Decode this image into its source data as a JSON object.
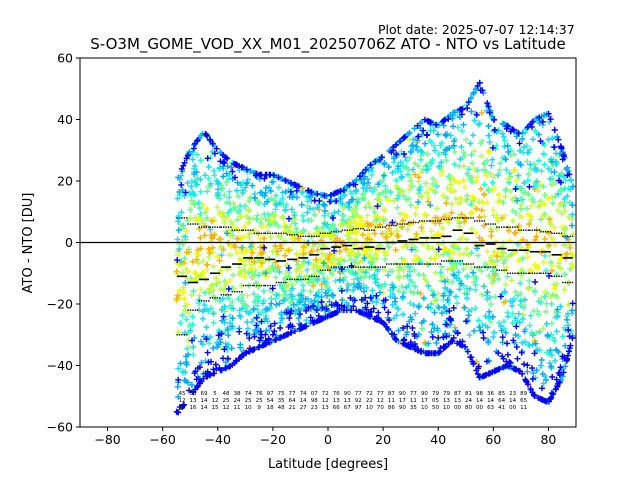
{
  "plot_date": "Plot date: 2025-07-07 12:14:37",
  "colors": {
    "background": "#ffffff",
    "axis": "#000000",
    "scatter_palette": [
      "#0000ff",
      "#00a8ff",
      "#1ad7ff",
      "#22ffd0",
      "#6bff8f",
      "#b8ff45",
      "#f0ff00",
      "#ffb000"
    ],
    "median_marker": "#000000",
    "spread_marker": "#000000"
  },
  "chart_data": {
    "type": "scatter",
    "title": "S-O3M_GOME_VOD_XX_M01_20250706Z ATO - NTO vs Latitude",
    "xlabel": "Latitude [degrees]",
    "ylabel": "ATO - NTO [DU]",
    "xlim": [
      -90,
      90
    ],
    "ylim": [
      -60,
      60
    ],
    "x_ticks": [
      -80,
      -60,
      -40,
      -20,
      0,
      20,
      40,
      60,
      80
    ],
    "y_ticks": [
      -60,
      -40,
      -20,
      0,
      20,
      40,
      60
    ],
    "zero_line": true,
    "grid": false,
    "marker": "+",
    "envelope": {
      "lat": [
        -55,
        -50,
        -45,
        -40,
        -35,
        -30,
        -25,
        -20,
        -15,
        -10,
        -5,
        0,
        5,
        10,
        15,
        20,
        25,
        30,
        35,
        40,
        45,
        50,
        55,
        60,
        65,
        70,
        75,
        80,
        85,
        89
      ],
      "upper": [
        20,
        30,
        36,
        30,
        26,
        24,
        22,
        22,
        20,
        18,
        16,
        15,
        17,
        20,
        25,
        28,
        32,
        36,
        40,
        38,
        42,
        44,
        52,
        40,
        38,
        35,
        40,
        42,
        30,
        18
      ],
      "lower": [
        -56,
        -50,
        -44,
        -42,
        -40,
        -36,
        -34,
        -32,
        -30,
        -28,
        -26,
        -24,
        -22,
        -22,
        -24,
        -26,
        -32,
        -34,
        -36,
        -36,
        -32,
        -34,
        -44,
        -42,
        -40,
        -42,
        -50,
        -52,
        -44,
        -30
      ]
    },
    "series": [
      {
        "name": "median",
        "lat": [
          -53,
          -49,
          -45,
          -41,
          -37,
          -33,
          -29,
          -25,
          -21,
          -17,
          -13,
          -9,
          -5,
          -1,
          3,
          7,
          11,
          15,
          19,
          23,
          27,
          31,
          35,
          39,
          43,
          47,
          51,
          55,
          59,
          63,
          67,
          71,
          75,
          79,
          83,
          87
        ],
        "values": [
          -11,
          -13,
          -12,
          -10,
          -8,
          -7,
          -5,
          -5,
          -5.5,
          -6,
          -5.5,
          -5,
          -4,
          -2,
          -1.5,
          -1,
          -2,
          -1.5,
          -2,
          0,
          0.5,
          1,
          1.5,
          1.5,
          2,
          4,
          3,
          -1,
          -0.5,
          -2,
          -2.5,
          -2.5,
          -3,
          -3,
          -4,
          -5
        ]
      },
      {
        "name": "upper_spread",
        "lat": [
          -53,
          -49,
          -45,
          -41,
          -37,
          -33,
          -29,
          -25,
          -21,
          -17,
          -13,
          -9,
          -5,
          -1,
          3,
          7,
          11,
          15,
          19,
          23,
          27,
          31,
          35,
          39,
          43,
          47,
          51,
          55,
          59,
          63,
          67,
          71,
          75,
          79,
          83,
          87
        ],
        "values": [
          8,
          6,
          5,
          5,
          5,
          4,
          4,
          3,
          3,
          3,
          2.5,
          2,
          2,
          3,
          3.5,
          4,
          4.5,
          4,
          5,
          5.5,
          6,
          6.5,
          7,
          7,
          7.5,
          8,
          8,
          7,
          6,
          5,
          5,
          4,
          4,
          3.5,
          3,
          2
        ]
      },
      {
        "name": "lower_spread",
        "lat": [
          -53,
          -49,
          -45,
          -41,
          -37,
          -33,
          -29,
          -25,
          -21,
          -17,
          -13,
          -9,
          -5,
          -1,
          3,
          7,
          11,
          15,
          19,
          23,
          27,
          31,
          35,
          39,
          43,
          47,
          51,
          55,
          59,
          63,
          67,
          71,
          75,
          79,
          83,
          87
        ],
        "values": [
          -30,
          -22,
          -19,
          -18,
          -17,
          -16,
          -14,
          -14,
          -14,
          -13,
          -12,
          -12,
          -11,
          -9,
          -8,
          -8,
          -8,
          -8,
          -8,
          -7,
          -7,
          -7,
          -7,
          -7,
          -6,
          -6,
          -7,
          -8,
          -8,
          -9,
          -10,
          -10,
          -10,
          -10,
          -11,
          -13
        ]
      }
    ],
    "bin_counts": [
      {
        "lat": -53,
        "line1": "45",
        "line2": "12",
        "line3": "15"
      },
      {
        "lat": -49,
        "line1": "53",
        "line2": "13",
        "line3": "16"
      },
      {
        "lat": -45,
        "line1": "69",
        "line2": "14",
        "line3": "14"
      },
      {
        "lat": -41,
        "line1": "5",
        "line2": "12",
        "line3": "15"
      },
      {
        "lat": -37,
        "line1": "48",
        "line2": "25",
        "line3": "12"
      },
      {
        "lat": -33,
        "line1": "38",
        "line2": "24",
        "line3": "11"
      },
      {
        "lat": -29,
        "line1": "74",
        "line2": "25",
        "line3": "10"
      },
      {
        "lat": -25,
        "line1": "76",
        "line2": "25",
        "line3": "9"
      },
      {
        "lat": -21,
        "line1": "97",
        "line2": "54",
        "line3": "18"
      },
      {
        "lat": -17,
        "line1": "75",
        "line2": "35",
        "line3": "48"
      },
      {
        "lat": -13,
        "line1": "77",
        "line2": "64",
        "line3": "21"
      },
      {
        "lat": -9,
        "line1": "74",
        "line2": "14",
        "line3": "27"
      },
      {
        "lat": -5,
        "line1": "07",
        "line2": "98",
        "line3": "23"
      },
      {
        "lat": -1,
        "line1": "72",
        "line2": "12",
        "line3": "13"
      },
      {
        "lat": 3,
        "line1": "76",
        "line2": "13",
        "line3": "66"
      },
      {
        "lat": 7,
        "line1": "90",
        "line2": "13",
        "line3": "67"
      },
      {
        "lat": 11,
        "line1": "77",
        "line2": "92",
        "line3": "97"
      },
      {
        "lat": 15,
        "line1": "72",
        "line2": "22",
        "line3": "10"
      },
      {
        "lat": 19,
        "line1": "77",
        "line2": "12",
        "line3": "70"
      },
      {
        "lat": 23,
        "line1": "87",
        "line2": "11",
        "line3": "86"
      },
      {
        "lat": 27,
        "line1": "90",
        "line2": "17",
        "line3": "90"
      },
      {
        "lat": 31,
        "line1": "77",
        "line2": "11",
        "line3": "35"
      },
      {
        "lat": 35,
        "line1": "90",
        "line2": "17",
        "line3": "10"
      },
      {
        "lat": 39,
        "line1": "79",
        "line2": "05",
        "line3": "50"
      },
      {
        "lat": 43,
        "line1": "79",
        "line2": "13",
        "line3": "10"
      },
      {
        "lat": 47,
        "line1": "87",
        "line2": "13",
        "line3": "00"
      },
      {
        "lat": 51,
        "line1": "81",
        "line2": "24",
        "line3": "80"
      },
      {
        "lat": 55,
        "line1": "98",
        "line2": "14",
        "line3": "00"
      },
      {
        "lat": 59,
        "line1": "36",
        "line2": "14",
        "line3": "63"
      },
      {
        "lat": 63,
        "line1": "85",
        "line2": "64",
        "line3": "41"
      },
      {
        "lat": 67,
        "line1": "23",
        "line2": "14",
        "line3": "00"
      },
      {
        "lat": 71,
        "line1": "89",
        "line2": "65",
        "line3": "11"
      }
    ]
  }
}
